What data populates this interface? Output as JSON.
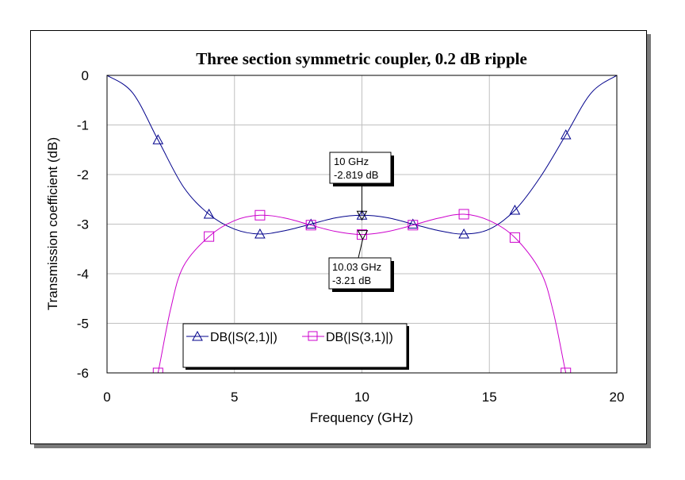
{
  "chart_data": {
    "type": "line",
    "title": "Three section symmetric coupler, 0.2 dB ripple",
    "xlabel": "Frequency (GHz)",
    "ylabel": "Transmission coefficient (dB)",
    "xlim": [
      0,
      20
    ],
    "ylim": [
      -6,
      0
    ],
    "xticks": [
      0,
      5,
      10,
      15,
      20
    ],
    "yticks": [
      0,
      -1,
      -2,
      -3,
      -4,
      -5,
      -6
    ],
    "grid": true,
    "legend_position": "bottom-left",
    "series": [
      {
        "name": "DB(|S(2,1)|)",
        "color": "#00008b",
        "marker": "triangle-up",
        "x": [
          0,
          1,
          2,
          3,
          4,
          5,
          6,
          7,
          8,
          9,
          10,
          11,
          12,
          13,
          14,
          15,
          16,
          17,
          18,
          19,
          20
        ],
        "values": [
          0,
          -0.35,
          -1.3,
          -2.25,
          -2.8,
          -3.1,
          -3.2,
          -3.13,
          -3.0,
          -2.87,
          -2.82,
          -2.87,
          -3.0,
          -3.13,
          -3.2,
          -3.1,
          -2.72,
          -2.05,
          -1.2,
          -0.35,
          0
        ],
        "marker_x": [
          2,
          4,
          6,
          8,
          10,
          12,
          14,
          16,
          18
        ]
      },
      {
        "name": "DB(|S(3,1)|)",
        "color": "#cc00cc",
        "marker": "square",
        "x": [
          1.85,
          2,
          2.5,
          3,
          4,
          5,
          6,
          7,
          8,
          9,
          10,
          11,
          12,
          13,
          14,
          15,
          16,
          17,
          17.5,
          18,
          18.15
        ],
        "values": [
          -6.2,
          -6.0,
          -4.7,
          -3.85,
          -3.25,
          -2.93,
          -2.82,
          -2.88,
          -3.02,
          -3.15,
          -3.21,
          -3.15,
          -3.02,
          -2.88,
          -2.8,
          -2.93,
          -3.27,
          -3.95,
          -4.75,
          -6.0,
          -6.2
        ],
        "marker_x": [
          2,
          4,
          6,
          8,
          10,
          12,
          14,
          16,
          18
        ]
      }
    ],
    "markers": [
      {
        "x": 10,
        "y": -2.819,
        "series": 0,
        "freq_label": "10 GHz",
        "value_label": "-2.819 dB"
      },
      {
        "x": 10.03,
        "y": -3.21,
        "series": 1,
        "freq_label": "10.03 GHz",
        "value_label": "-3.21 dB"
      }
    ]
  }
}
